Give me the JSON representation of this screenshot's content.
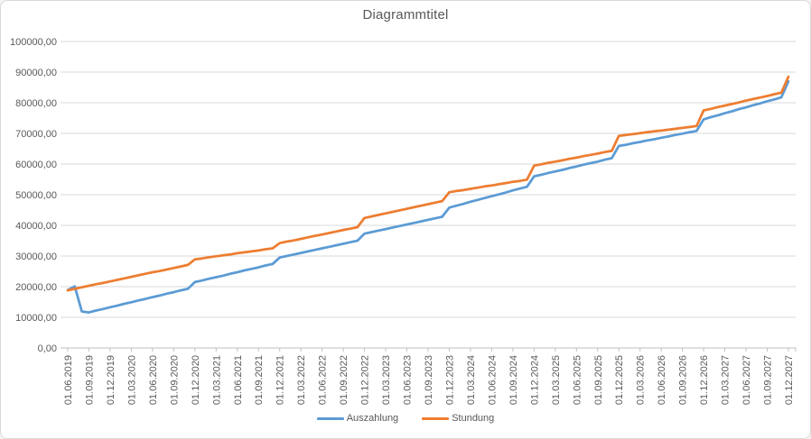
{
  "window": {
    "background": "#ffffff",
    "border_color": "#d9d9d9"
  },
  "colors": {
    "title_text": "#595959",
    "axis_label_text": "#595959",
    "gridline": "#d9d9d9",
    "axis_line": "#bfbfbf",
    "series_auszahlung": "#5b9bd5",
    "series_stundung": "#ed7d31"
  },
  "chart_data": {
    "type": "line",
    "title": "Diagrammtitel",
    "xlabel": "",
    "ylabel": "",
    "ylim": [
      0,
      100000
    ],
    "grid": "horizontal",
    "legend_position": "bottom",
    "y_tick_values": [
      0,
      10000,
      20000,
      30000,
      40000,
      50000,
      60000,
      70000,
      80000,
      90000,
      100000
    ],
    "y_tick_labels": [
      "0,00",
      "10000,00",
      "20000,00",
      "30000,00",
      "40000,00",
      "50000,00",
      "60000,00",
      "70000,00",
      "80000,00",
      "90000,00",
      "100000,00"
    ],
    "x_tick_labels": [
      "01.06.2019",
      "01.09.2019",
      "01.12.2019",
      "01.03.2020",
      "01.06.2020",
      "01.09.2020",
      "01.12.2020",
      "01.03.2021",
      "01.06.2021",
      "01.09.2021",
      "01.12.2021",
      "01.03.2022",
      "01.06.2022",
      "01.09.2022",
      "01.12.2022",
      "01.03.2023",
      "01.06.2023",
      "01.09.2023",
      "01.12.2023",
      "01.03.2024",
      "01.06.2024",
      "01.09.2024",
      "01.12.2024",
      "01.03.2025",
      "01.06.2025",
      "01.09.2025",
      "01.12.2025",
      "01.03.2026",
      "01.06.2026",
      "01.09.2026",
      "01.12.2026",
      "01.03.2027",
      "01.06.2027",
      "01.09.2027",
      "01.12.2027"
    ],
    "points_per_tick_interval": 3,
    "x_start": "01.06.2019",
    "x_step": "1 month",
    "series": [
      {
        "name": "Auszahlung",
        "color": "#5b9bd5",
        "values": [
          18900,
          20100,
          11900,
          11600,
          12200,
          12700,
          13300,
          13800,
          14400,
          14900,
          15500,
          16000,
          16600,
          17100,
          17700,
          18200,
          18800,
          19300,
          21500,
          22000,
          22600,
          23100,
          23600,
          24200,
          24700,
          25300,
          25800,
          26300,
          26900,
          27400,
          29500,
          30000,
          30500,
          31000,
          31500,
          32000,
          32500,
          33000,
          33500,
          34000,
          34500,
          35000,
          37300,
          37800,
          38300,
          38800,
          39300,
          39800,
          40300,
          40800,
          41300,
          41800,
          42300,
          42800,
          45800,
          46400,
          47000,
          47700,
          48300,
          48900,
          49500,
          50100,
          50700,
          51400,
          52000,
          52600,
          56000,
          56500,
          57100,
          57600,
          58100,
          58700,
          59200,
          59800,
          60300,
          60800,
          61400,
          61900,
          65900,
          66300,
          66800,
          67200,
          67700,
          68100,
          68600,
          69000,
          69500,
          69900,
          70400,
          70800,
          74600,
          75300,
          75900,
          76600,
          77200,
          77900,
          78500,
          79200,
          79800,
          80500,
          81100,
          81800,
          87000
        ]
      },
      {
        "name": "Stundung",
        "color": "#ed7d31",
        "values": [
          18800,
          19300,
          19800,
          20300,
          20800,
          21200,
          21700,
          22200,
          22700,
          23200,
          23700,
          24200,
          24700,
          25100,
          25600,
          26100,
          26600,
          27100,
          28900,
          29200,
          29600,
          29900,
          30200,
          30500,
          30900,
          31200,
          31500,
          31800,
          32200,
          32500,
          34200,
          34700,
          35100,
          35600,
          36100,
          36600,
          37000,
          37500,
          38000,
          38500,
          38900,
          39400,
          42400,
          42900,
          43400,
          43900,
          44400,
          44900,
          45400,
          45900,
          46400,
          46900,
          47400,
          47900,
          50800,
          51200,
          51500,
          51900,
          52300,
          52700,
          53000,
          53400,
          53800,
          54200,
          54500,
          54900,
          59500,
          59900,
          60400,
          60800,
          61200,
          61700,
          62100,
          62600,
          63000,
          63400,
          63900,
          64300,
          69200,
          69500,
          69800,
          70100,
          70400,
          70700,
          70900,
          71200,
          71500,
          71800,
          72100,
          72400,
          77500,
          78000,
          78600,
          79100,
          79600,
          80100,
          80700,
          81200,
          81700,
          82200,
          82800,
          83300,
          88500
        ]
      }
    ]
  }
}
